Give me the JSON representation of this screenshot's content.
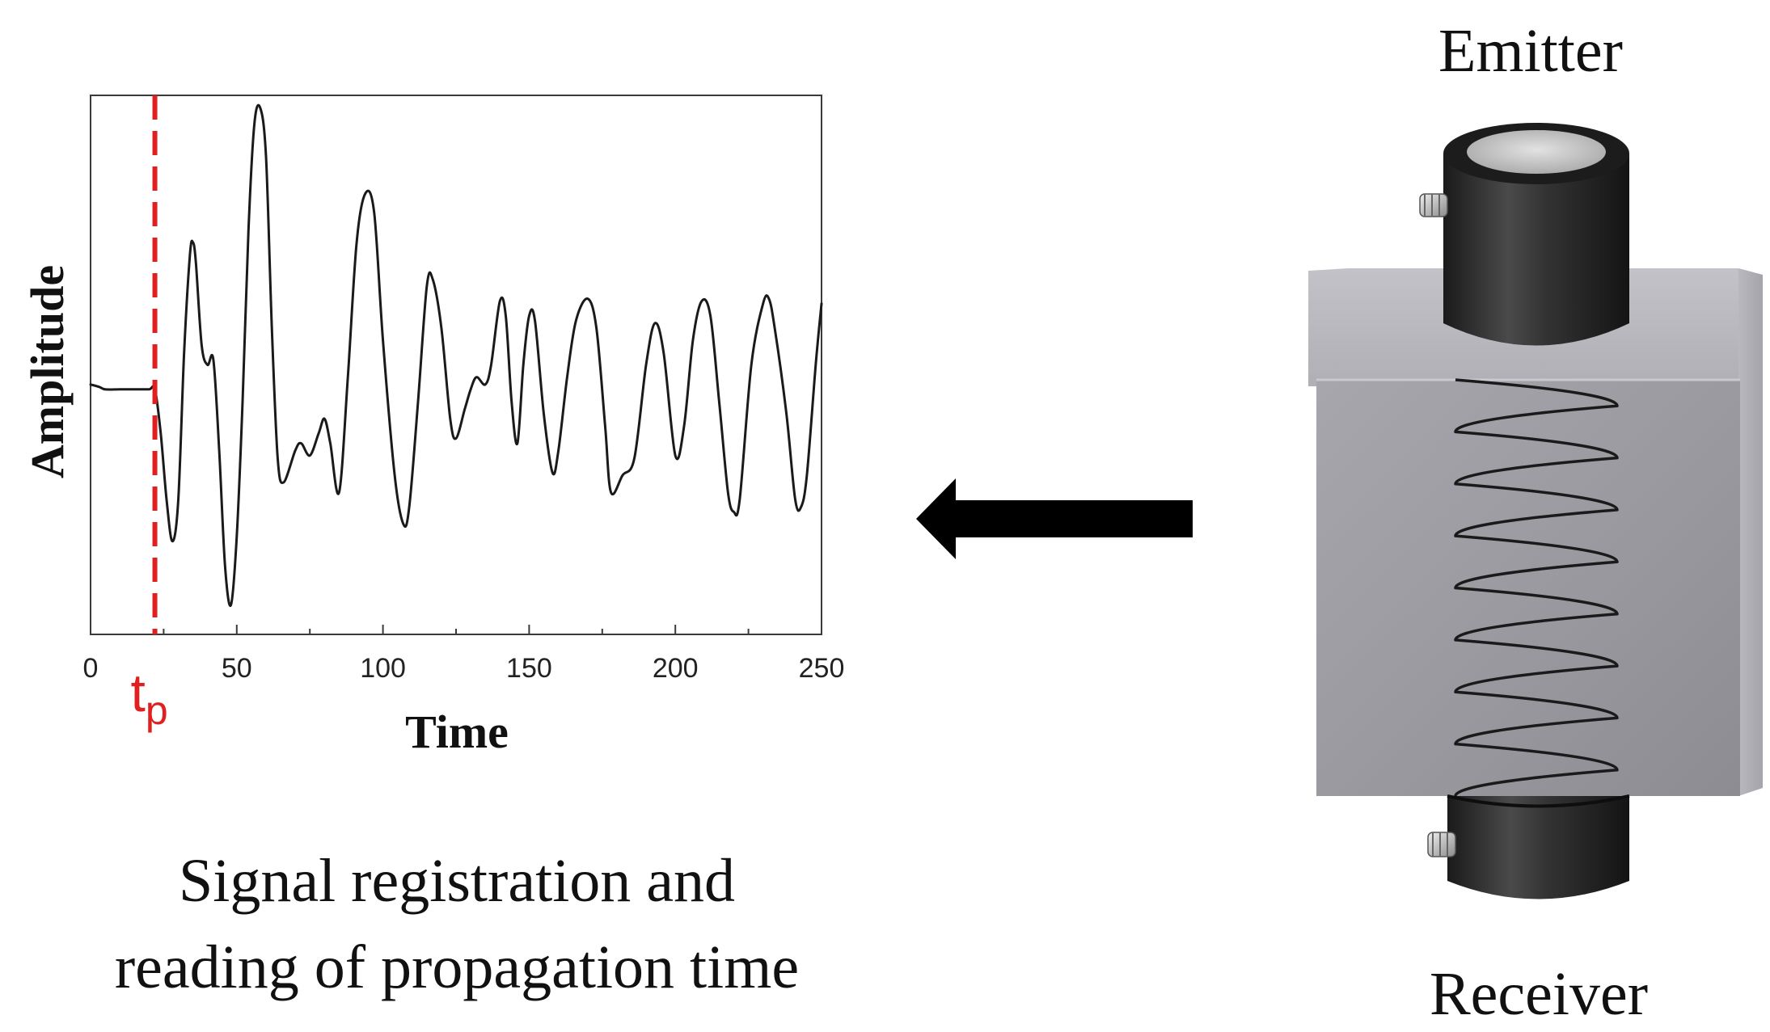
{
  "chart_data": {
    "type": "line",
    "xlabel": "Time",
    "ylabel": "Amplitude",
    "xlim": [
      0,
      250
    ],
    "ylim": [
      -1.0,
      1.2
    ],
    "xticks": [
      0,
      50,
      100,
      150,
      200,
      250
    ],
    "marker": {
      "label": "t",
      "subscript": "p",
      "x": 22,
      "color": "#e02020"
    },
    "series": [
      {
        "points": [
          [
            0,
            0.02
          ],
          [
            3,
            0.01
          ],
          [
            5,
            0.0
          ],
          [
            10,
            0.0
          ],
          [
            15,
            0.0
          ],
          [
            20,
            0.0
          ],
          [
            22,
            0.0
          ],
          [
            24,
            -0.18
          ],
          [
            26,
            -0.45
          ],
          [
            28,
            -0.62
          ],
          [
            30,
            -0.45
          ],
          [
            32,
            0.15
          ],
          [
            34,
            0.55
          ],
          [
            35,
            0.6
          ],
          [
            36,
            0.52
          ],
          [
            38,
            0.18
          ],
          [
            40,
            0.1
          ],
          [
            42,
            0.12
          ],
          [
            44,
            -0.25
          ],
          [
            46,
            -0.72
          ],
          [
            48,
            -0.88
          ],
          [
            50,
            -0.6
          ],
          [
            52,
            -0.05
          ],
          [
            54,
            0.65
          ],
          [
            56,
            1.08
          ],
          [
            58,
            1.15
          ],
          [
            60,
            0.95
          ],
          [
            62,
            0.25
          ],
          [
            64,
            -0.28
          ],
          [
            66,
            -0.38
          ],
          [
            70,
            -0.25
          ],
          [
            72,
            -0.22
          ],
          [
            75,
            -0.27
          ],
          [
            78,
            -0.18
          ],
          [
            80,
            -0.12
          ],
          [
            82,
            -0.22
          ],
          [
            85,
            -0.42
          ],
          [
            88,
            0.05
          ],
          [
            91,
            0.6
          ],
          [
            94,
            0.8
          ],
          [
            97,
            0.72
          ],
          [
            100,
            0.2
          ],
          [
            104,
            -0.35
          ],
          [
            107,
            -0.55
          ],
          [
            109,
            -0.48
          ],
          [
            112,
            -0.05
          ],
          [
            115,
            0.42
          ],
          [
            117,
            0.45
          ],
          [
            120,
            0.25
          ],
          [
            123,
            -0.12
          ],
          [
            125,
            -0.2
          ],
          [
            128,
            -0.08
          ],
          [
            130,
            0.0
          ],
          [
            132,
            0.05
          ],
          [
            135,
            0.02
          ],
          [
            137,
            0.1
          ],
          [
            140,
            0.36
          ],
          [
            142,
            0.3
          ],
          [
            144,
            -0.05
          ],
          [
            146,
            -0.22
          ],
          [
            148,
            0.1
          ],
          [
            150,
            0.3
          ],
          [
            152,
            0.28
          ],
          [
            155,
            -0.1
          ],
          [
            158,
            -0.34
          ],
          [
            160,
            -0.25
          ],
          [
            163,
            0.05
          ],
          [
            166,
            0.28
          ],
          [
            170,
            0.37
          ],
          [
            173,
            0.25
          ],
          [
            176,
            -0.15
          ],
          [
            178,
            -0.42
          ],
          [
            182,
            -0.35
          ],
          [
            186,
            -0.28
          ],
          [
            190,
            0.1
          ],
          [
            193,
            0.27
          ],
          [
            196,
            0.15
          ],
          [
            200,
            -0.27
          ],
          [
            203,
            -0.15
          ],
          [
            206,
            0.2
          ],
          [
            209,
            0.36
          ],
          [
            212,
            0.3
          ],
          [
            215,
            -0.05
          ],
          [
            218,
            -0.42
          ],
          [
            220,
            -0.5
          ],
          [
            222,
            -0.45
          ],
          [
            226,
            0.1
          ],
          [
            230,
            0.35
          ],
          [
            232,
            0.37
          ],
          [
            234,
            0.25
          ],
          [
            238,
            -0.1
          ],
          [
            241,
            -0.45
          ],
          [
            243,
            -0.48
          ],
          [
            245,
            -0.35
          ],
          [
            248,
            0.1
          ],
          [
            250,
            0.35
          ]
        ]
      }
    ]
  },
  "caption": {
    "line1": "Signal registration and",
    "line2": "reading of propagation time"
  },
  "diagram": {
    "emitter_label": "Emitter",
    "receiver_label": "Receiver"
  },
  "colors": {
    "signal": "#1a1a1a",
    "marker": "#e02020",
    "arrow": "#000000",
    "block": "#9a9aa0",
    "transducer": "#2a2a2a"
  }
}
